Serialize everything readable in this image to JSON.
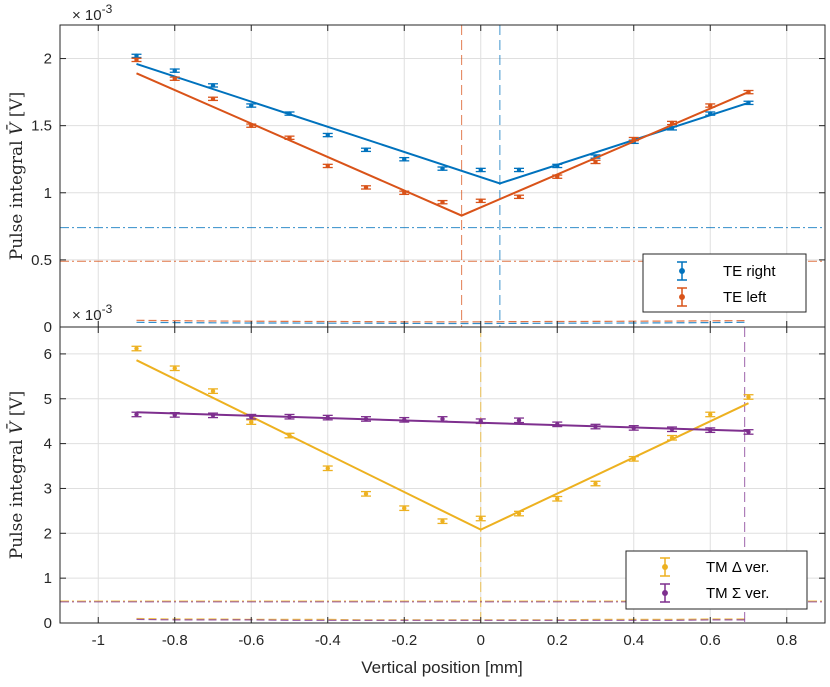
{
  "colors": {
    "blue": "#0072BD",
    "orange": "#D95319",
    "yellow": "#EDB120",
    "purple": "#7E2F8E",
    "axis": "#262626",
    "grid": "#dfdfdf"
  },
  "chart_data": [
    {
      "type": "scatter",
      "panel": "top",
      "ylabel": "Pulse integral V̄ [V]",
      "ylabel_main": "Pulse integral",
      "ylabel_sym": "V̄",
      "ylabel_unit": "[V]",
      "exponent": "× 10",
      "exponent_power": "-3",
      "xlim": [
        -1.1,
        0.9
      ],
      "ylim": [
        0,
        2.25
      ],
      "yticks": [
        0,
        0.5,
        1,
        1.5,
        2
      ],
      "ytick_labels": [
        "0",
        "0.5",
        "1",
        "1.5",
        "2"
      ],
      "series": [
        {
          "name": "TE right",
          "color": "#0072BD",
          "x": [
            -0.9,
            -0.8,
            -0.7,
            -0.6,
            -0.5,
            -0.4,
            -0.3,
            -0.2,
            -0.1,
            0.0,
            0.1,
            0.2,
            0.3,
            0.4,
            0.5,
            0.6,
            0.7
          ],
          "y": [
            2.02,
            1.91,
            1.8,
            1.65,
            1.59,
            1.43,
            1.32,
            1.25,
            1.18,
            1.17,
            1.17,
            1.2,
            1.27,
            1.38,
            1.48,
            1.59,
            1.67
          ],
          "err": [
            0.012,
            0.012,
            0.012,
            0.012,
            0.012,
            0.012,
            0.012,
            0.012,
            0.012,
            0.012,
            0.012,
            0.012,
            0.012,
            0.012,
            0.012,
            0.012,
            0.012
          ],
          "fit_x": [
            -0.9,
            0.05,
            0.7
          ],
          "fit_y": [
            1.96,
            1.07,
            1.67
          ],
          "vline_x": 0.05,
          "hline_y": 0.74,
          "baseline_y": [
            0.035,
            0.033,
            0.031,
            0.03,
            0.03,
            0.028,
            0.028,
            0.027,
            0.026,
            0.026,
            0.027,
            0.028,
            0.029,
            0.03,
            0.031,
            0.033,
            0.035
          ]
        },
        {
          "name": "TE left",
          "color": "#D95319",
          "x": [
            -0.9,
            -0.8,
            -0.7,
            -0.6,
            -0.5,
            -0.4,
            -0.3,
            -0.2,
            -0.1,
            0.0,
            0.1,
            0.2,
            0.3,
            0.4,
            0.5,
            0.6,
            0.7
          ],
          "y": [
            1.99,
            1.85,
            1.7,
            1.5,
            1.41,
            1.2,
            1.04,
            1.0,
            0.93,
            0.94,
            0.97,
            1.12,
            1.23,
            1.4,
            1.52,
            1.65,
            1.75
          ],
          "err": [
            0.012,
            0.012,
            0.012,
            0.012,
            0.012,
            0.012,
            0.012,
            0.012,
            0.012,
            0.012,
            0.012,
            0.012,
            0.012,
            0.012,
            0.012,
            0.012,
            0.012
          ],
          "fit_x": [
            -0.9,
            -0.05,
            0.7
          ],
          "fit_y": [
            1.89,
            0.83,
            1.75
          ],
          "vline_x": -0.05,
          "hline_y": 0.49,
          "baseline_y": [
            0.05,
            0.047,
            0.045,
            0.043,
            0.042,
            0.041,
            0.04,
            0.039,
            0.039,
            0.039,
            0.04,
            0.041,
            0.042,
            0.043,
            0.044,
            0.046,
            0.048
          ]
        }
      ],
      "legend": {
        "position": "bottom-right",
        "entries": [
          "TE right",
          "TE left"
        ]
      }
    },
    {
      "type": "scatter",
      "panel": "bottom",
      "ylabel": "Pulse integral V̄ [V]",
      "ylabel_main": "Pulse integral",
      "ylabel_sym": "V̄",
      "ylabel_unit": "[V]",
      "xlabel": "Vertical position [mm]",
      "exponent": "× 10",
      "exponent_power": "-3",
      "xlim": [
        -1.1,
        0.9
      ],
      "ylim": [
        0,
        6.6
      ],
      "xticks": [
        -1,
        -0.8,
        -0.6,
        -0.4,
        -0.2,
        0,
        0.2,
        0.4,
        0.6,
        0.8
      ],
      "xtick_labels": [
        "-1",
        "-0.8",
        "-0.6",
        "-0.4",
        "-0.2",
        "0",
        "0.2",
        "0.4",
        "0.6",
        "0.8"
      ],
      "yticks": [
        0,
        1,
        2,
        3,
        4,
        5,
        6
      ],
      "ytick_labels": [
        "0",
        "1",
        "2",
        "3",
        "4",
        "5",
        "6"
      ],
      "series": [
        {
          "name": "TM Δ ver.",
          "color": "#EDB120",
          "x": [
            -0.9,
            -0.8,
            -0.7,
            -0.6,
            -0.5,
            -0.4,
            -0.3,
            -0.2,
            -0.1,
            0.0,
            0.1,
            0.2,
            0.3,
            0.4,
            0.5,
            0.6,
            0.7
          ],
          "y": [
            6.12,
            5.68,
            5.17,
            4.48,
            4.18,
            3.45,
            2.88,
            2.56,
            2.27,
            2.33,
            2.44,
            2.77,
            3.11,
            3.66,
            4.13,
            4.65,
            5.04
          ],
          "err": [
            0.05,
            0.05,
            0.05,
            0.05,
            0.05,
            0.05,
            0.05,
            0.05,
            0.05,
            0.05,
            0.05,
            0.05,
            0.05,
            0.05,
            0.05,
            0.05,
            0.05
          ],
          "fit_x": [
            -0.9,
            0.0,
            0.7
          ],
          "fit_y": [
            5.86,
            2.08,
            4.9
          ],
          "vline_x": 0.0,
          "hline_y": 0.49,
          "baseline_y": [
            0.1,
            0.09,
            0.09,
            0.08,
            0.08,
            0.08,
            0.07,
            0.07,
            0.07,
            0.07,
            0.07,
            0.07,
            0.08,
            0.08,
            0.08,
            0.09,
            0.09
          ]
        },
        {
          "name": "TM Σ ver.",
          "color": "#7E2F8E",
          "x": [
            -0.9,
            -0.8,
            -0.7,
            -0.6,
            -0.5,
            -0.4,
            -0.3,
            -0.2,
            -0.1,
            0.0,
            0.1,
            0.2,
            0.3,
            0.4,
            0.5,
            0.6,
            0.7
          ],
          "y": [
            4.65,
            4.64,
            4.63,
            4.6,
            4.6,
            4.58,
            4.55,
            4.53,
            4.55,
            4.5,
            4.52,
            4.43,
            4.38,
            4.35,
            4.32,
            4.3,
            4.26
          ],
          "err": [
            0.05,
            0.05,
            0.05,
            0.05,
            0.05,
            0.05,
            0.05,
            0.05,
            0.05,
            0.05,
            0.05,
            0.05,
            0.05,
            0.05,
            0.05,
            0.05,
            0.05
          ],
          "fit_x": [
            -0.9,
            0.7
          ],
          "fit_y": [
            4.7,
            4.28
          ],
          "vline_x": 0.69,
          "hline_y": 0.47,
          "baseline_y": [
            0.08,
            0.07,
            0.07,
            0.07,
            0.06,
            0.06,
            0.06,
            0.06,
            0.06,
            0.06,
            0.06,
            0.06,
            0.06,
            0.06,
            0.06,
            0.07,
            0.07
          ]
        }
      ],
      "legend": {
        "position": "bottom-right",
        "entries": [
          "TM Δ ver.",
          "TM Σ ver."
        ]
      }
    }
  ]
}
